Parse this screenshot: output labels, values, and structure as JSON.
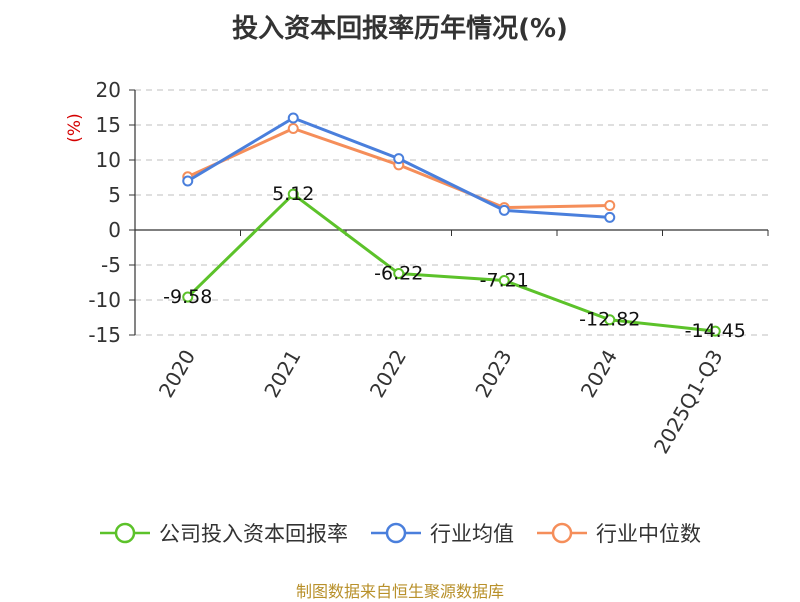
{
  "chart_data": {
    "type": "line",
    "title": "投入资本回报率历年情况(%)",
    "ylabel": "(%)",
    "xlabel": "",
    "categories": [
      "2020",
      "2021",
      "2022",
      "2023",
      "2024",
      "2025Q1-Q3"
    ],
    "ylim": [
      -15,
      20
    ],
    "yticks": [
      20,
      15,
      10,
      5,
      0,
      -5,
      -10,
      -15
    ],
    "grid": true,
    "legend_position": "bottom",
    "series": [
      {
        "name": "公司投入资本回报率",
        "color": "#5cc22a",
        "values": [
          -9.58,
          5.12,
          -6.22,
          -7.21,
          -12.82,
          -14.45
        ],
        "labels": [
          "-9.58",
          "5.12",
          "-6.22",
          "-7.21",
          "-12.82",
          "-14.45"
        ]
      },
      {
        "name": "行业均值",
        "color": "#4a7fdc",
        "values": [
          7.0,
          16.0,
          10.2,
          2.8,
          1.8,
          null
        ]
      },
      {
        "name": "行业中位数",
        "color": "#f58e5a",
        "values": [
          7.6,
          14.5,
          9.3,
          3.2,
          3.5,
          null
        ]
      }
    ]
  },
  "source": "制图数据来自恒生聚源数据库"
}
